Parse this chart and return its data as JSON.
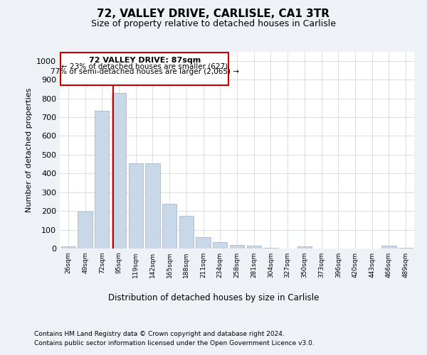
{
  "title_line1": "72, VALLEY DRIVE, CARLISLE, CA1 3TR",
  "title_line2": "Size of property relative to detached houses in Carlisle",
  "xlabel": "Distribution of detached houses by size in Carlisle",
  "ylabel": "Number of detached properties",
  "footnote1": "Contains HM Land Registry data © Crown copyright and database right 2024.",
  "footnote2": "Contains public sector information licensed under the Open Government Licence v3.0.",
  "annotation_title": "72 VALLEY DRIVE: 87sqm",
  "annotation_line2": "← 23% of detached houses are smaller (627)",
  "annotation_line3": "77% of semi-detached houses are larger (2,065) →",
  "bar_color": "#c8d8e8",
  "bar_edge_color": "#9ab0c8",
  "highlight_line_color": "#cc0000",
  "annotation_box_edge_color": "#cc0000",
  "categories": [
    "26sqm",
    "49sqm",
    "72sqm",
    "95sqm",
    "119sqm",
    "142sqm",
    "165sqm",
    "188sqm",
    "211sqm",
    "234sqm",
    "258sqm",
    "281sqm",
    "304sqm",
    "327sqm",
    "350sqm",
    "373sqm",
    "396sqm",
    "420sqm",
    "443sqm",
    "466sqm",
    "489sqm"
  ],
  "values": [
    10,
    195,
    735,
    830,
    455,
    455,
    240,
    175,
    60,
    35,
    20,
    15,
    5,
    0,
    10,
    0,
    0,
    0,
    0,
    15,
    5
  ],
  "ylim": [
    0,
    1050
  ],
  "yticks": [
    0,
    100,
    200,
    300,
    400,
    500,
    600,
    700,
    800,
    900,
    1000
  ],
  "background_color": "#eef2f7",
  "plot_bg_color": "#ffffff",
  "grid_color": "#c8d0d8",
  "line_x_index": 2.65
}
